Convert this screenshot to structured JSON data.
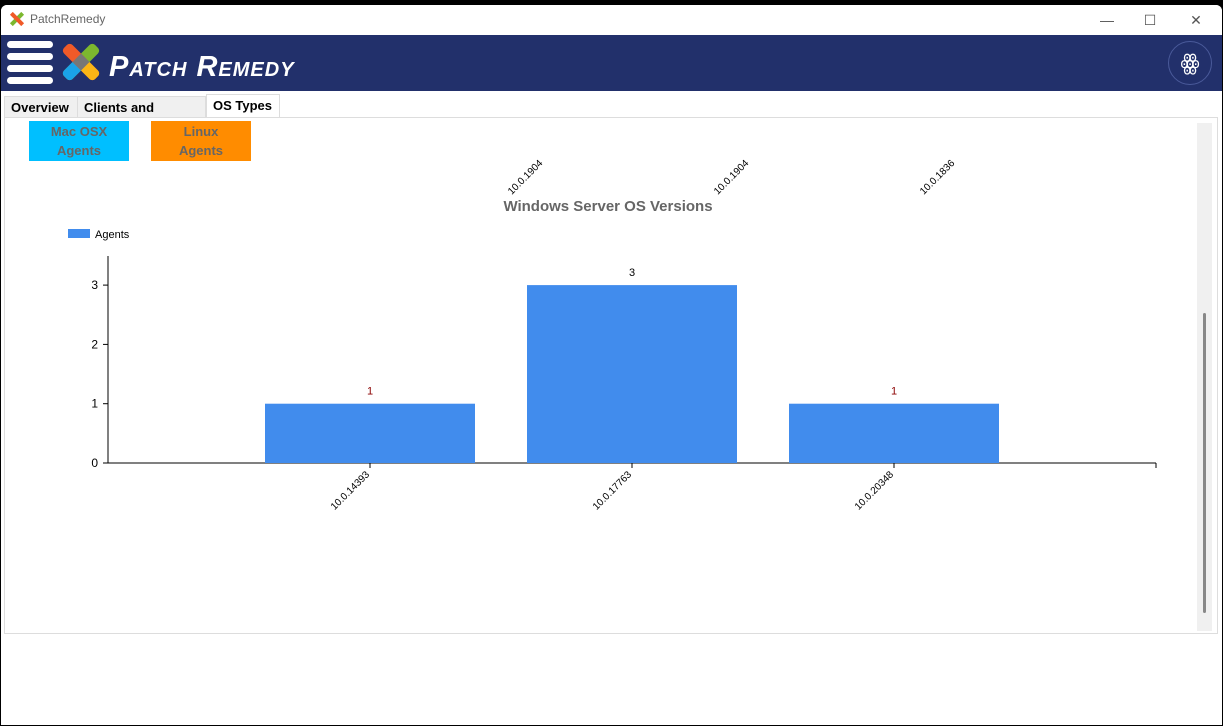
{
  "window": {
    "title": "PatchRemedy",
    "controls": [
      "—",
      "☐",
      "✕"
    ]
  },
  "header": {
    "brand": "Patch Remedy",
    "logo_icon": "bandage-cross-logo",
    "partner_icon": "squid-icon"
  },
  "tabs": [
    {
      "label": "Overview"
    },
    {
      "label": "Clients and Agents"
    },
    {
      "label": "OS Types",
      "active": true
    }
  ],
  "tiles": [
    {
      "line1": "Mac OSX",
      "line2": "Agents",
      "color": "#00bfff"
    },
    {
      "line1": "Linux",
      "line2": "Agents",
      "color": "#ff8c00"
    }
  ],
  "previous_chart_labels": [
    "10.0.1904",
    "10.0.1904",
    "10.0.1836"
  ],
  "chart_data": {
    "type": "bar",
    "title": "Windows Server OS Versions",
    "legend": {
      "entries": [
        "Agents"
      ],
      "placement": "top-left"
    },
    "categories": [
      "10.0.14393",
      "10.0.17763",
      "10.0.20348"
    ],
    "series": [
      {
        "name": "Agents",
        "values": [
          1,
          3,
          1
        ],
        "color": "#418ced"
      }
    ],
    "data_labels": [
      "1",
      "3",
      "1"
    ],
    "yticks": [
      0,
      1,
      2,
      3
    ],
    "ylim": [
      0,
      3.3
    ],
    "grid": false
  }
}
